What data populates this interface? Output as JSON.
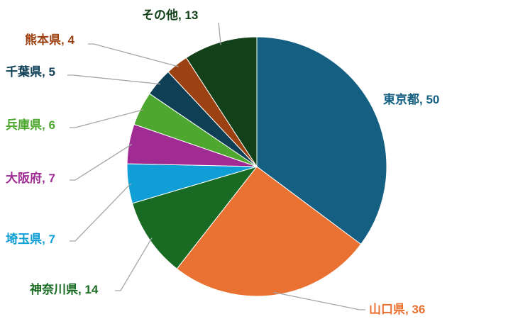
{
  "chart_data": {
    "type": "pie",
    "title": "",
    "start": "top",
    "direction": "clockwise",
    "slices": [
      {
        "label": "東京都",
        "value": 50,
        "color": "#156082"
      },
      {
        "label": "山口県",
        "value": 36,
        "color": "#E97132"
      },
      {
        "label": "神奈川県",
        "value": 14,
        "color": "#196B24"
      },
      {
        "label": "埼玉県",
        "value": 7,
        "color": "#0F9ED5"
      },
      {
        "label": "大阪府",
        "value": 7,
        "color": "#A02B93"
      },
      {
        "label": "兵庫県",
        "value": 6,
        "color": "#4EA72E"
      },
      {
        "label": "千葉県",
        "value": 5,
        "color": "#0E3F55"
      },
      {
        "label": "熊本県",
        "value": 4,
        "color": "#9C4212"
      },
      {
        "label": "その他",
        "value": 13,
        "color": "#124018"
      }
    ],
    "data_labels": [
      "東京都, 50",
      "山口県, 36",
      "神奈川県, 14",
      "埼玉県, 7",
      "大阪府, 7",
      "兵庫県, 6",
      "千葉県, 5",
      "熊本県, 4",
      "その他, 13"
    ],
    "leader_line_color": "#A6A6A6"
  }
}
